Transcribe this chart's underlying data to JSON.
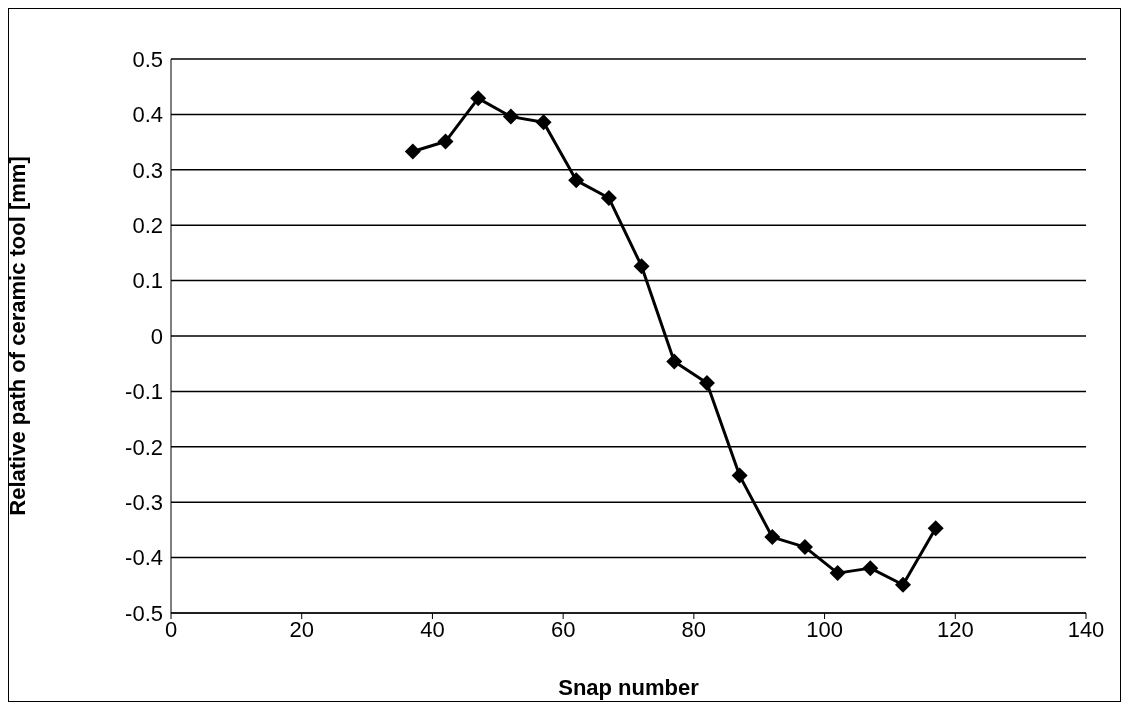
{
  "chart_data": {
    "type": "line",
    "xlabel": "Snap number",
    "ylabel": "Relative path of ceramic tool [mm]",
    "x": [
      37,
      42,
      47,
      52,
      57,
      62,
      67,
      72,
      77,
      82,
      87,
      92,
      97,
      102,
      107,
      112,
      117
    ],
    "series": [
      {
        "color": "#000000",
        "values": [
          0.333,
          0.351,
          0.429,
          0.396,
          0.386,
          0.281,
          0.249,
          0.126,
          -0.046,
          -0.085,
          -0.252,
          -0.363,
          -0.381,
          -0.428,
          -0.419,
          -0.449,
          -0.347
        ]
      }
    ],
    "xlim": [
      0,
      140
    ],
    "xticks": [
      0,
      20,
      40,
      60,
      80,
      100,
      120,
      140
    ],
    "ylim": [
      -0.5,
      0.5
    ],
    "yticks": [
      -0.5,
      -0.4,
      -0.3,
      -0.2,
      -0.1,
      0,
      0.1,
      0.2,
      0.3,
      0.4,
      0.5
    ],
    "grid": "y",
    "marker": "diamond",
    "line_style": "solid",
    "legend": false
  }
}
